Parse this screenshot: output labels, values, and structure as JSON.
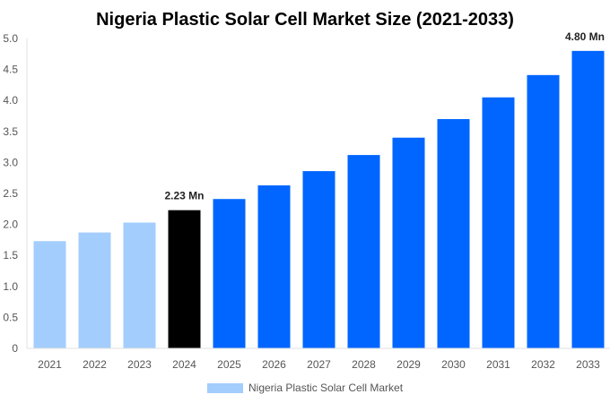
{
  "chart_data": {
    "type": "bar",
    "title": "Nigeria Plastic Solar Cell Market Size (2021-2033)",
    "xlabel": "",
    "ylabel": "",
    "ylim": [
      0,
      5.0
    ],
    "yticks": [
      "0",
      "0.5",
      "1.0",
      "1.5",
      "2.0",
      "2.5",
      "3.0",
      "3.5",
      "4.0",
      "4.5",
      "5.0"
    ],
    "categories": [
      "2021",
      "2022",
      "2023",
      "2024",
      "2025",
      "2026",
      "2027",
      "2028",
      "2029",
      "2030",
      "2031",
      "2032",
      "2033"
    ],
    "values": [
      1.73,
      1.87,
      2.03,
      2.23,
      2.41,
      2.63,
      2.86,
      3.12,
      3.4,
      3.7,
      4.05,
      4.41,
      4.8
    ],
    "bar_colors": [
      "#a3cdfc",
      "#a3cdfc",
      "#a3cdfc",
      "#000000",
      "#0066ff",
      "#0066ff",
      "#0066ff",
      "#0066ff",
      "#0066ff",
      "#0066ff",
      "#0066ff",
      "#0066ff",
      "#0066ff"
    ],
    "data_labels": [
      {
        "category": "2024",
        "text": "2.23 Mn"
      },
      {
        "category": "2033",
        "text": "4.80 Mn"
      }
    ],
    "legend": {
      "placement": "bottom",
      "entries": [
        {
          "name": "Nigeria Plastic Solar Cell Market",
          "color": "#a3cdfc"
        }
      ]
    },
    "grid": false
  }
}
